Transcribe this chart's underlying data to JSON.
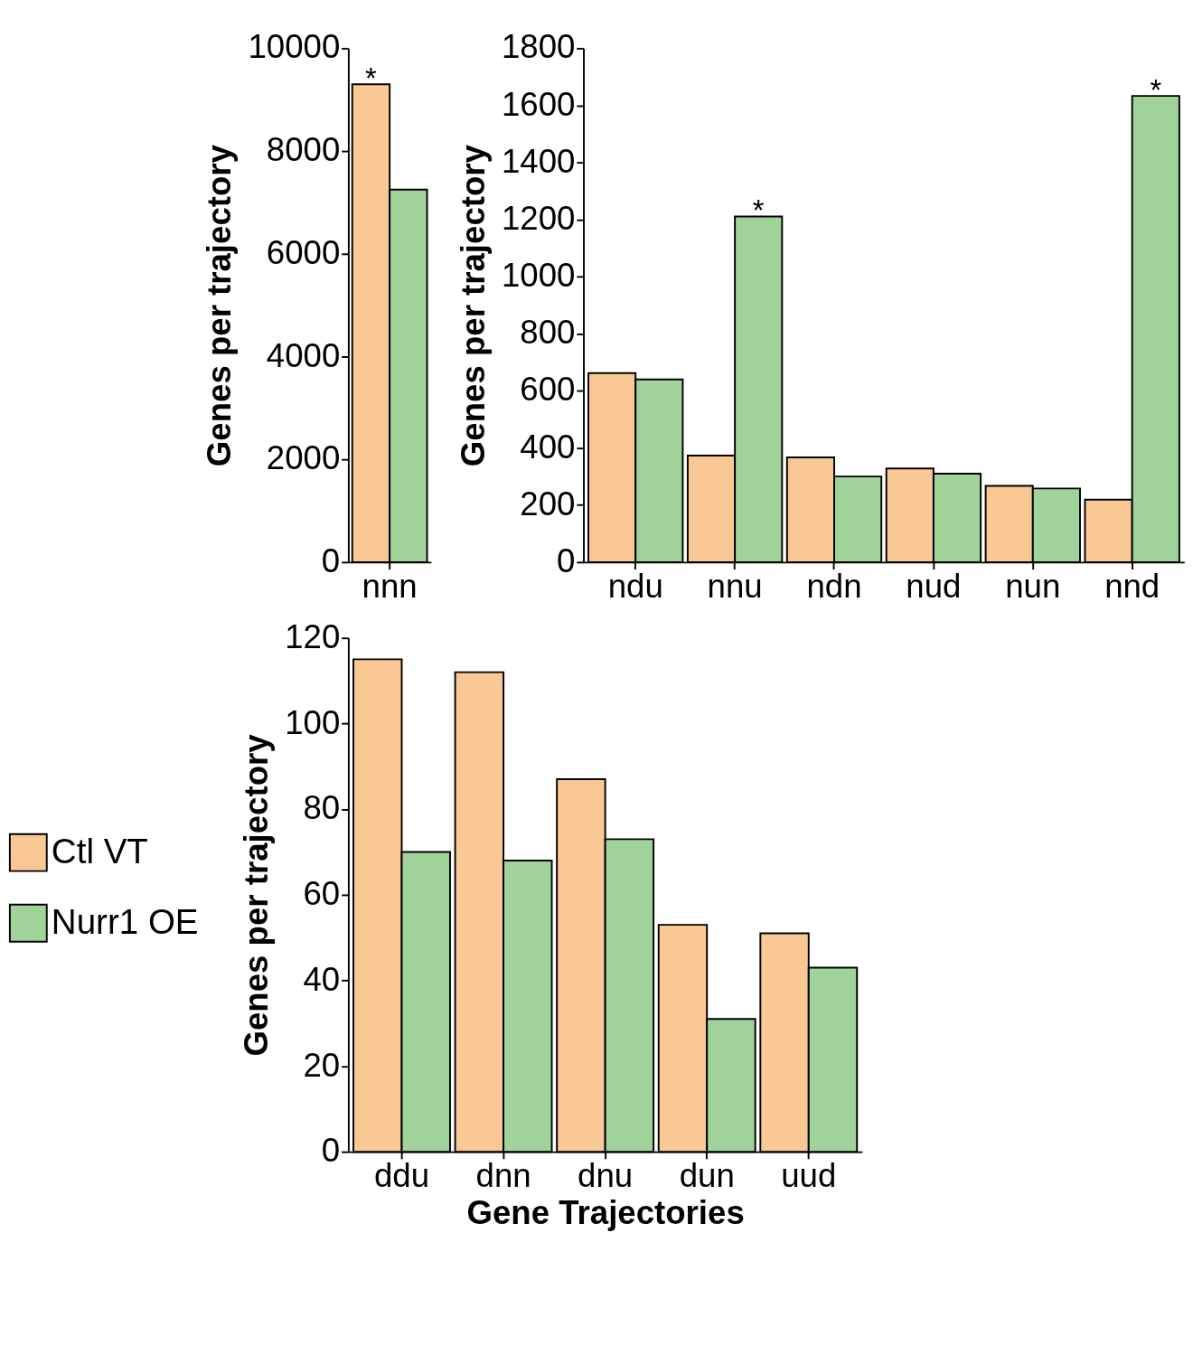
{
  "chart_data": [
    {
      "type": "bar",
      "ylabel": "Genes per trajectory",
      "categories": [
        "nnn"
      ],
      "series": [
        {
          "color": "#f9c895",
          "values": [
            9300
          ]
        },
        {
          "color": "#9fd39a",
          "values": [
            7250
          ]
        }
      ],
      "ylim": [
        0,
        10000
      ],
      "yticks": [
        0,
        2000,
        4000,
        6000,
        8000,
        10000
      ],
      "annotations": [
        {
          "text": "*",
          "x": "nnn",
          "y": 9300
        }
      ],
      "grid": false,
      "legend": false
    },
    {
      "type": "bar",
      "ylabel": "Genes per trajectory",
      "categories": [
        "ndu",
        "nnu",
        "ndn",
        "nud",
        "nun",
        "nnd"
      ],
      "series": [
        {
          "color": "#f9c895",
          "values": [
            662,
            373,
            367,
            328,
            267,
            219
          ]
        },
        {
          "color": "#9fd39a",
          "values": [
            640,
            1211,
            300,
            310,
            258,
            1633
          ]
        }
      ],
      "ylim": [
        0,
        1800
      ],
      "yticks": [
        0,
        200,
        400,
        600,
        800,
        1000,
        1200,
        1400,
        1600,
        1800
      ],
      "annotations": [
        {
          "text": "*",
          "x": "nnu",
          "y": 1211
        },
        {
          "text": "*",
          "x": "nnd",
          "y": 1633
        }
      ],
      "grid": false,
      "legend": false
    },
    {
      "type": "bar",
      "xlabel": "Gene Trajectories",
      "ylabel": "Genes per trajectory",
      "categories": [
        "ddu",
        "dnn",
        "dnu",
        "dun",
        "uud"
      ],
      "series": [
        {
          "name": "Ctl VT",
          "color": "#f9c895",
          "values": [
            115,
            112,
            87,
            53,
            51
          ]
        },
        {
          "name": "Nurr1 OE",
          "color": "#9fd39a",
          "values": [
            70,
            68,
            73,
            31,
            43
          ]
        }
      ],
      "ylim": [
        0,
        120
      ],
      "yticks": [
        0,
        20,
        40,
        60,
        80,
        100,
        120
      ],
      "grid": false,
      "legend": "left"
    }
  ]
}
